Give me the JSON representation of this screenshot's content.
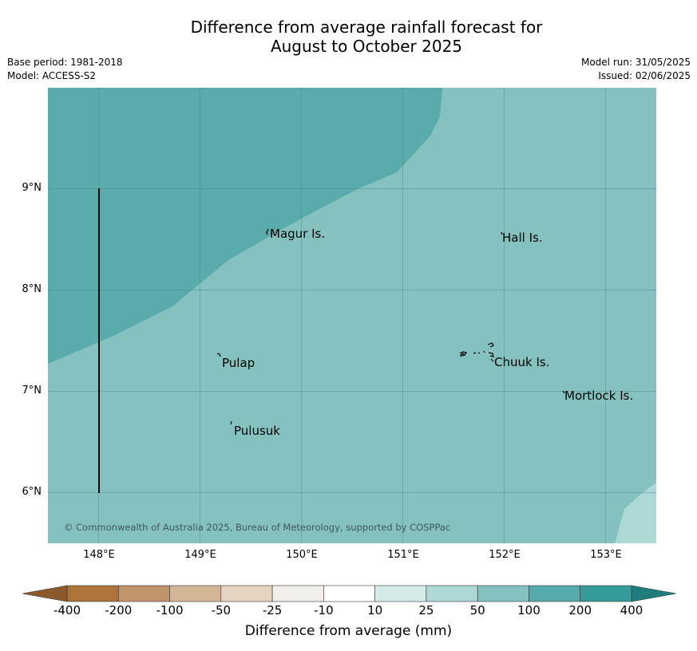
{
  "title_line1": "Difference from average rainfall forecast for",
  "title_line2": "August to October 2025",
  "base_period": "Base period: 1981-2018",
  "model": "Model: ACCESS-S2",
  "model_run": "Model run: 31/05/2025",
  "issued": "Issued: 02/06/2025",
  "lat_labels": [
    "9°N",
    "8°N",
    "7°N",
    "6°N"
  ],
  "lon_labels": [
    "148°E",
    "149°E",
    "150°E",
    "151°E",
    "152°E",
    "153°E"
  ],
  "places": [
    {
      "name": "Magur Is.",
      "lon": 149.72,
      "lat": 8.55
    },
    {
      "name": "Hall Is.",
      "lon": 151.98,
      "lat": 8.51
    },
    {
      "name": "Pulap",
      "lon": 149.2,
      "lat": 7.28
    },
    {
      "name": "Chuuk Is.",
      "lon": 151.85,
      "lat": 7.29
    },
    {
      "name": "Mortlock Is.",
      "lon": 152.6,
      "lat": 6.96
    },
    {
      "name": "Pulusuk",
      "lon": 149.32,
      "lat": 6.61
    }
  ],
  "copyright": "© Commonwealth of Australia 2025, Bureau of Meteorology, supported by COSPPac",
  "colorbar": {
    "title": "Difference from average (mm)",
    "labels": [
      "-400",
      "-200",
      "-100",
      "-50",
      "-25",
      "-10",
      "10",
      "25",
      "50",
      "100",
      "200",
      "400"
    ],
    "colors": [
      "#ad7339",
      "#c1956b",
      "#d4b595",
      "#e6d4c2",
      "#f2efea",
      "#ffffff",
      "#d6ecea",
      "#add8d6",
      "#84c1bf",
      "#57aaab",
      "#359b99"
    ],
    "extend_low_color": "#8c5a2a",
    "extend_high_color": "#1f7e7c"
  },
  "map_colors": {
    "class_50_100": "#84c1bf",
    "class_100_200": "#5aabab",
    "class_25_50": "#add8d6"
  }
}
